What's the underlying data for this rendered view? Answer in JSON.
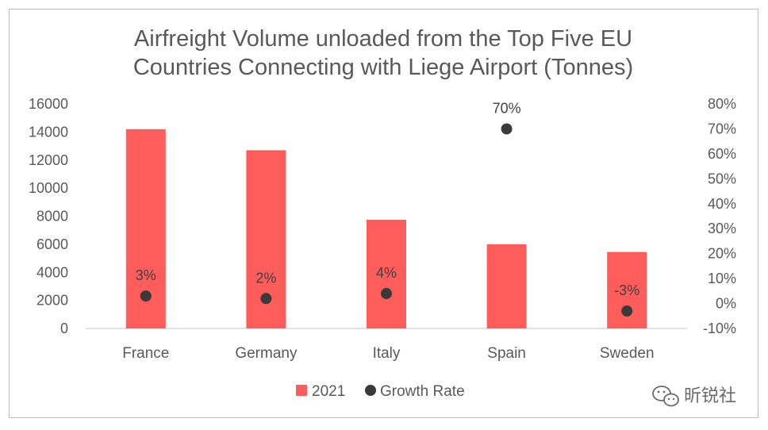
{
  "chart_data": {
    "type": "bar",
    "title_lines": [
      "Airfreight Volume unloaded from the Top Five EU",
      "Countries Connecting with Liege Airport (Tonnes)"
    ],
    "categories": [
      "France",
      "Germany",
      "Italy",
      "Spain",
      "Sweden"
    ],
    "series": [
      {
        "name": "2021",
        "type": "bar",
        "axis": "left",
        "color": "#ff5c5c",
        "values": [
          14200,
          12700,
          7750,
          6000,
          5450
        ]
      },
      {
        "name": "Growth Rate",
        "type": "scatter",
        "axis": "right",
        "color": "#3a3a3a",
        "values": [
          3,
          2,
          4,
          70,
          -3
        ],
        "labels": [
          "3%",
          "2%",
          "4%",
          "70%",
          "-3%"
        ]
      }
    ],
    "y_left": {
      "ylim": [
        0,
        16000
      ],
      "ticks": [
        "0",
        "2000",
        "4000",
        "6000",
        "8000",
        "10000",
        "12000",
        "14000",
        "16000"
      ]
    },
    "y_right": {
      "ylim": [
        -10,
        80
      ],
      "ticks": [
        "-10%",
        "0%",
        "10%",
        "20%",
        "30%",
        "40%",
        "50%",
        "60%",
        "70%",
        "80%"
      ]
    },
    "grid": false,
    "legend": {
      "position": "bottom",
      "items": [
        "2021",
        "Growth Rate"
      ]
    }
  },
  "watermark": {
    "text": "昕锐社",
    "icon": "wechat-icon"
  }
}
